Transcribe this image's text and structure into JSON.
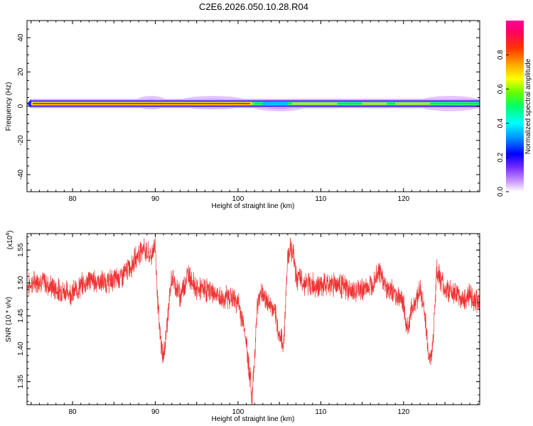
{
  "title": "C2E6.2026.050.10.28.R04",
  "chart_data": [
    {
      "type": "heatmap",
      "xlabel": "Height of straight line (km)",
      "ylabel": "Frequency (Hz)",
      "xlim": [
        74.5,
        129.2
      ],
      "ylim": [
        -50,
        50
      ],
      "xticks": [
        80,
        90,
        100,
        110,
        120
      ],
      "yticks": [
        40,
        20,
        0,
        -20,
        -40
      ],
      "grid": false,
      "colorbar": {
        "label": "Normalized spectral amplitude",
        "range": [
          0,
          1
        ],
        "ticks": [
          0.0,
          0.2,
          0.4,
          0.6,
          0.8
        ],
        "colors": [
          "#ffffff",
          "#cc99ff",
          "#6600ff",
          "#0000ff",
          "#0099ff",
          "#00ffff",
          "#00ff66",
          "#66ff00",
          "#ffff00",
          "#ffaa00",
          "#ff3300",
          "#ff0066",
          "#ff0099"
        ]
      },
      "band": {
        "center_frequency_hz": 1.5,
        "segments": [
          {
            "x": [
              74.5,
              102
            ],
            "core": "red",
            "width_hz": 2.5
          },
          {
            "x": [
              102,
              129.2
            ],
            "core": "green",
            "width_hz": 3
          }
        ],
        "broadening": [
          {
            "x": [
              88,
              91
            ],
            "frequency_hz": [
              -2,
              6
            ]
          },
          {
            "x": [
              93,
              101
            ],
            "frequency_hz": [
              -2,
              6
            ]
          },
          {
            "x": [
              102,
              108
            ],
            "frequency_hz": [
              -3,
              4
            ]
          },
          {
            "x": [
              122,
              129.2
            ],
            "frequency_hz": [
              -3,
              6
            ]
          }
        ]
      }
    },
    {
      "type": "line",
      "xlabel": "Height of straight line (km)",
      "ylabel": "SNR (10 * v/v)",
      "yscale_label": "(x10",
      "yscale_exponent": "4",
      "xlim": [
        74.5,
        129.2
      ],
      "ylim": [
        1.315,
        1.575
      ],
      "xticks": [
        80,
        90,
        100,
        110,
        120
      ],
      "yticks": [
        1.35,
        1.4,
        1.45,
        1.5,
        1.55
      ],
      "grid": false,
      "series": [
        {
          "color": "#ee3333",
          "x": [
            74.5,
            76,
            78,
            80,
            82,
            84,
            86,
            87,
            88,
            88.5,
            89,
            89.5,
            90,
            90.3,
            90.6,
            91,
            92,
            93,
            94,
            95,
            96,
            97,
            98,
            99,
            100,
            100.8,
            101.3,
            101.7,
            102,
            102.3,
            102.8,
            103.5,
            104,
            104.5,
            105,
            105.5,
            106,
            106.3,
            106.7,
            107,
            108,
            110,
            112,
            114,
            116,
            117,
            117.5,
            118,
            119,
            120,
            120.3,
            120.6,
            121,
            122,
            122.5,
            123,
            123.3,
            123.6,
            124,
            125,
            126,
            127,
            128,
            129.2
          ],
          "y": [
            1.495,
            1.505,
            1.49,
            1.485,
            1.505,
            1.5,
            1.51,
            1.525,
            1.545,
            1.555,
            1.545,
            1.54,
            1.56,
            1.47,
            1.415,
            1.385,
            1.51,
            1.48,
            1.515,
            1.49,
            1.49,
            1.485,
            1.475,
            1.48,
            1.47,
            1.43,
            1.375,
            1.325,
            1.39,
            1.46,
            1.49,
            1.47,
            1.465,
            1.45,
            1.42,
            1.405,
            1.54,
            1.555,
            1.545,
            1.51,
            1.5,
            1.495,
            1.5,
            1.485,
            1.495,
            1.52,
            1.505,
            1.49,
            1.485,
            1.47,
            1.435,
            1.435,
            1.46,
            1.49,
            1.46,
            1.395,
            1.38,
            1.42,
            1.52,
            1.49,
            1.485,
            1.475,
            1.48,
            1.47
          ]
        }
      ]
    }
  ]
}
